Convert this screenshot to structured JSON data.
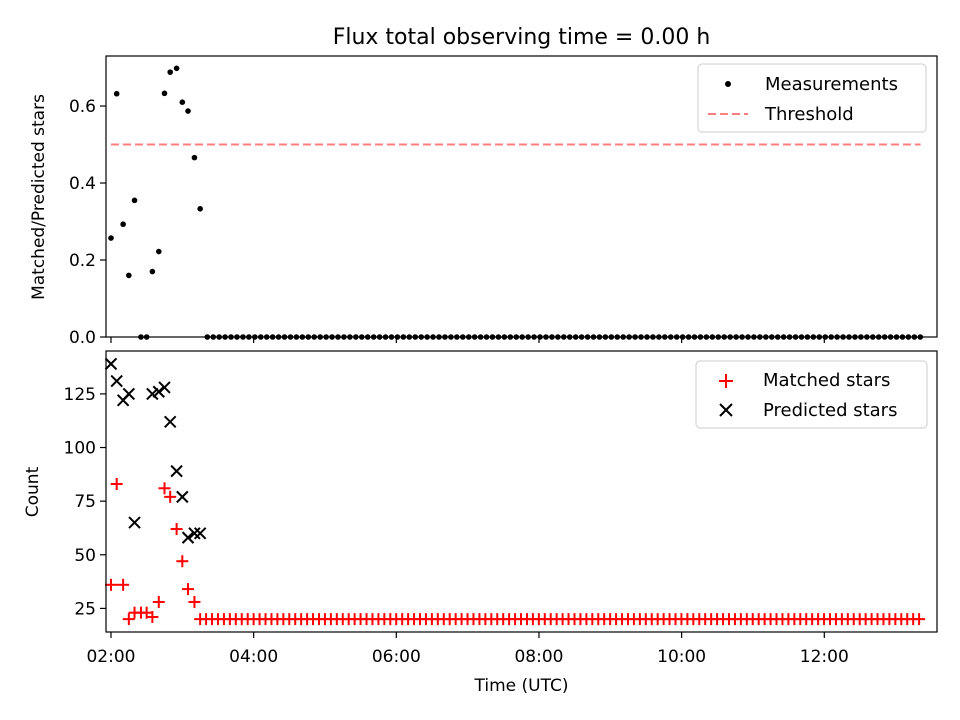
{
  "title": "Flux total observing time = 0.00 h",
  "chart_data": [
    {
      "type": "scatter",
      "panel": "top",
      "ylabel": "Matched/Predicted stars",
      "xlabel": "",
      "xlim": [
        1.93,
        13.58
      ],
      "ylim": [
        0.0,
        0.73
      ],
      "yticks": [
        0.0,
        0.2,
        0.4,
        0.6
      ],
      "ytick_labels": [
        "0.0",
        "0.2",
        "0.4",
        "0.6"
      ],
      "xticks": [
        2,
        4,
        6,
        8,
        10,
        12
      ],
      "legend": {
        "position": "upper right",
        "items": [
          {
            "label": "Measurements",
            "marker": "dot",
            "color": "#000000"
          },
          {
            "label": "Threshold",
            "marker": "dashed-line",
            "color": "#ff7f7f"
          }
        ]
      },
      "threshold": {
        "value": 0.5,
        "x_start": 2.0,
        "x_end": 13.35,
        "color": "#ff7f7f"
      },
      "measurements": {
        "x": [
          2.0,
          2.08,
          2.17,
          2.25,
          2.33,
          2.58,
          2.67,
          2.75,
          2.83,
          2.92,
          3.0,
          3.08,
          3.17,
          3.25
        ],
        "y": [
          0.257,
          0.632,
          0.293,
          0.16,
          0.355,
          0.17,
          0.222,
          0.633,
          0.688,
          0.698,
          0.61,
          0.587,
          0.466,
          0.333
        ]
      },
      "zero_points": {
        "x": [
          2.42,
          2.5
        ],
        "x_start": 3.35,
        "x_end": 13.35,
        "step": 0.0833,
        "y": 0.0
      }
    },
    {
      "type": "scatter",
      "panel": "bottom",
      "ylabel": "Count",
      "xlabel": "Time (UTC)",
      "xlim": [
        1.93,
        13.58
      ],
      "ylim": [
        14,
        145
      ],
      "yticks": [
        25,
        50,
        75,
        100,
        125
      ],
      "ytick_labels": [
        "25",
        "50",
        "75",
        "100",
        "125"
      ],
      "xticks": [
        2,
        4,
        6,
        8,
        10,
        12
      ],
      "xtick_labels": [
        "02:00",
        "04:00",
        "06:00",
        "08:00",
        "10:00",
        "12:00"
      ],
      "legend": {
        "position": "upper right",
        "items": [
          {
            "label": "Matched stars",
            "marker": "plus",
            "color": "#ff0000"
          },
          {
            "label": "Predicted stars",
            "marker": "x",
            "color": "#000000"
          }
        ]
      },
      "matched": {
        "x": [
          2.0,
          2.08,
          2.17,
          2.25,
          2.33,
          2.42,
          2.5,
          2.58,
          2.67,
          2.75,
          2.83,
          2.92,
          3.0,
          3.08,
          3.17
        ],
        "y": [
          36,
          83,
          36,
          20,
          23,
          23,
          23,
          21,
          28,
          81,
          77,
          62,
          47,
          34,
          28
        ],
        "baseline": {
          "x_start": 3.25,
          "x_end": 13.35,
          "step": 0.0833,
          "y": 20
        }
      },
      "predicted": {
        "x": [
          2.0,
          2.08,
          2.17,
          2.25,
          2.33,
          2.58,
          2.67,
          2.75,
          2.83,
          2.92,
          3.0,
          3.08,
          3.17,
          3.25
        ],
        "y": [
          139,
          131,
          122,
          125,
          65,
          125,
          126,
          128,
          112,
          89,
          77,
          58,
          60,
          60
        ]
      }
    }
  ]
}
